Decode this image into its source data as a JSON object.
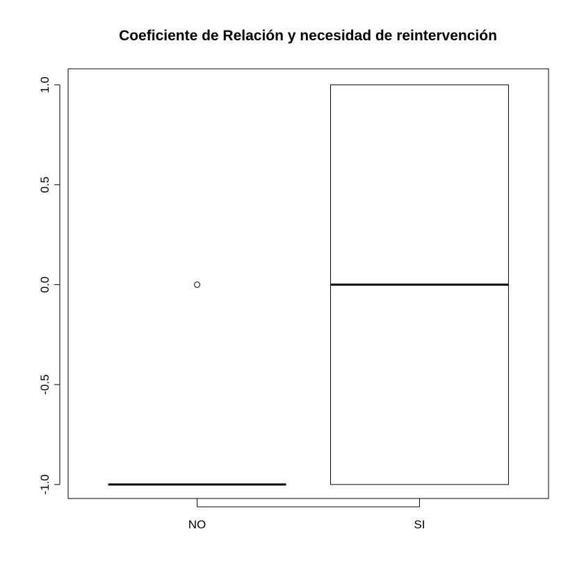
{
  "chart_data": {
    "type": "boxplot",
    "title": "Coeficiente de Relación y necesidad de reintervención",
    "xlabel": "",
    "ylabel": "",
    "categories": [
      "NO",
      "SI"
    ],
    "ylim": [
      -1.07,
      1.08
    ],
    "yticks": [
      -1.0,
      -0.5,
      0.0,
      0.5,
      1.0
    ],
    "ytick_labels": [
      "-1.0",
      "-0.5",
      "0.0",
      "0.5",
      "1.0"
    ],
    "boxes": [
      {
        "category": "NO",
        "whisker_low": -1.0,
        "q1": -1.0,
        "median": -1.0,
        "q3": -1.0,
        "whisker_high": -1.0,
        "outliers": [
          0.0
        ]
      },
      {
        "category": "SI",
        "whisker_low": -1.0,
        "q1": -1.0,
        "median": 0.0,
        "q3": 1.0,
        "whisker_high": 1.0,
        "outliers": []
      }
    ],
    "colors": {
      "box_fill": "#ffffff",
      "stroke": "#000000"
    }
  }
}
